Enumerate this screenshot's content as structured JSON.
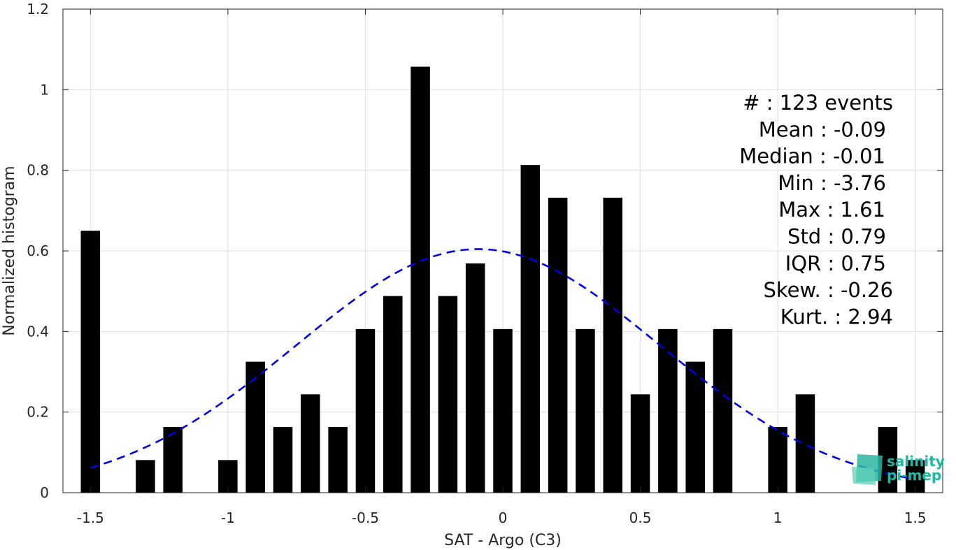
{
  "chart_data": {
    "type": "bar",
    "xlabel": "SAT - Argo (C3)",
    "ylabel": "Normalized histogram",
    "xlim": [
      -1.6,
      1.6
    ],
    "ylim": [
      0,
      1.2
    ],
    "xticks": [
      -1.5,
      -1,
      -0.5,
      0,
      0.5,
      1,
      1.5
    ],
    "xtick_labels": [
      "-1.5",
      "-1",
      "-0.5",
      "0",
      "0.5",
      "1",
      "1.5"
    ],
    "yticks": [
      0,
      0.2,
      0.4,
      0.6,
      0.8,
      1,
      1.2
    ],
    "ytick_labels": [
      "0",
      "0.2",
      "0.4",
      "0.6",
      "0.8",
      "1",
      "1.2"
    ],
    "grid": true,
    "bar_width": 0.07,
    "bars": {
      "x": [
        -1.5,
        -1.4,
        -1.3,
        -1.2,
        -1.1,
        -1.0,
        -0.9,
        -0.8,
        -0.7,
        -0.6,
        -0.5,
        -0.4,
        -0.3,
        -0.2,
        -0.1,
        0.0,
        0.1,
        0.2,
        0.3,
        0.4,
        0.5,
        0.6,
        0.7,
        0.8,
        0.9,
        1.0,
        1.1,
        1.2,
        1.3,
        1.4,
        1.5
      ],
      "values": [
        0.65,
        0,
        0.081,
        0.163,
        0,
        0.081,
        0.325,
        0.163,
        0.244,
        0.163,
        0.406,
        0.488,
        1.057,
        0.488,
        0.569,
        0.406,
        0.813,
        0.732,
        0.406,
        0.732,
        0.244,
        0.406,
        0.325,
        0.406,
        0,
        0.163,
        0.244,
        0,
        0,
        0.163,
        0.081
      ],
      "color": "#000000"
    },
    "fit": {
      "type": "normal",
      "mean": -0.09,
      "std": 0.66,
      "xrange": [
        -1.5,
        1.5
      ],
      "color": "#0000e6",
      "style": "dashed"
    },
    "stats": [
      {
        "label": "#  : 123 events"
      },
      {
        "label": "Mean : -0.09"
      },
      {
        "label": "Median : -0.01"
      },
      {
        "label": "Min : -3.76"
      },
      {
        "label": "Max : 1.61"
      },
      {
        "label": "Std : 0.79"
      },
      {
        "label": "IQR : 0.75"
      },
      {
        "label": "Skew. : -0.26"
      },
      {
        "label": "Kurt. : 2.94"
      }
    ]
  },
  "logo": {
    "line1": "salinity",
    "line2": "pi-mep",
    "color": "#1fb8a0"
  }
}
